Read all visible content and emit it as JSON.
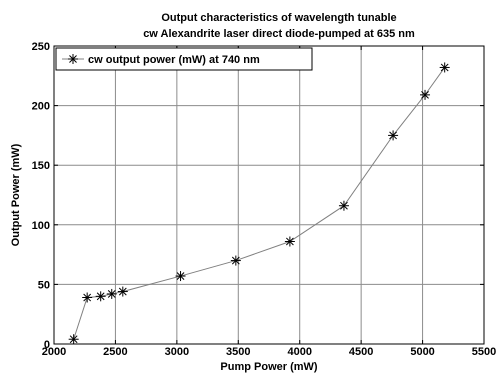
{
  "chart_data": {
    "type": "line",
    "title": [
      "Output characteristics of wavelength tunable",
      "cw Alexandrite laser direct diode-pumped at 635 nm"
    ],
    "xlabel": "Pump Power (mW)",
    "ylabel": "Output Power (mW)",
    "xlim": [
      2000,
      5500
    ],
    "ylim": [
      0,
      250
    ],
    "xticks": [
      2000,
      2500,
      3000,
      3500,
      4000,
      4500,
      5000,
      5500
    ],
    "yticks": [
      0,
      50,
      100,
      150,
      200,
      250
    ],
    "xtick_labels": [
      "2000",
      "2500",
      "3000",
      "3500",
      "4000",
      "4500",
      "5000",
      "5500"
    ],
    "ytick_labels": [
      "0",
      "50",
      "100",
      "150",
      "200",
      "250"
    ],
    "grid": true,
    "legend_position": "top-left",
    "series": [
      {
        "name": "cw output power (mW) at 740 nm",
        "marker": "asterisk",
        "line_color": "#808080",
        "marker_color": "#000000",
        "x": [
          2160,
          2270,
          2380,
          2470,
          2560,
          3030,
          3480,
          3920,
          4360,
          4760,
          5020,
          5180
        ],
        "y": [
          4,
          39,
          40,
          42,
          44,
          57,
          70,
          86,
          116,
          175,
          209,
          232
        ]
      }
    ]
  }
}
